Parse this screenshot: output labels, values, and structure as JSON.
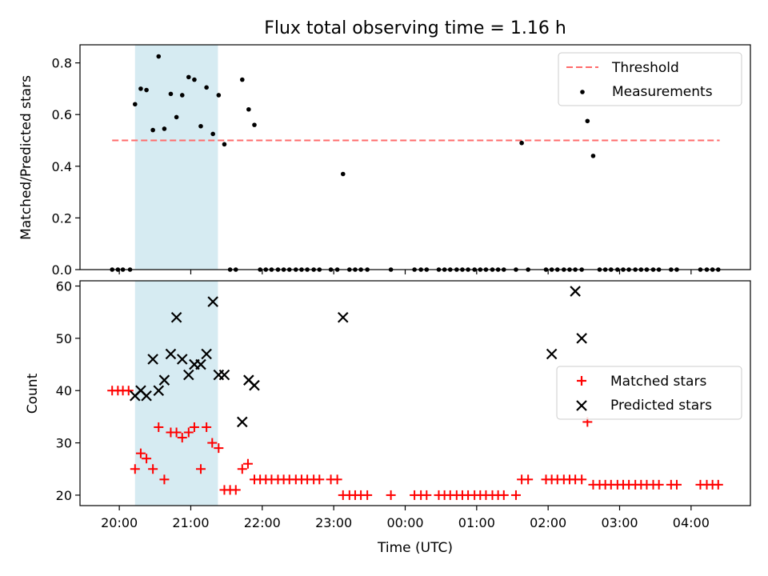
{
  "figure": {
    "title": "Flux total observing time = 1.16 h"
  },
  "colors": {
    "threshold": "#ff6b6b",
    "measurement": "#000000",
    "matched": "#ff0000",
    "predicted": "#000000",
    "highlight": "#add8e6"
  },
  "chart_data": [
    {
      "type": "scatter",
      "ylabel": "Matched/Predicted stars",
      "xlabel": "",
      "ylim": [
        0,
        0.87
      ],
      "yticks": [
        "0.0",
        "0.2",
        "0.4",
        "0.6",
        "0.8"
      ],
      "highlight_interval_hours": [
        20.22,
        21.38
      ],
      "legend_position": "top-right",
      "legend": [
        "Threshold",
        "Measurements"
      ],
      "threshold": {
        "name": "Threshold",
        "y": 0.5,
        "x_range_hours": [
          19.9,
          28.4
        ]
      },
      "series": [
        {
          "name": "Measurements",
          "x_hours": [
            19.9,
            19.98,
            20.05,
            20.15,
            20.22,
            20.3,
            20.38,
            20.47,
            20.55,
            20.63,
            20.72,
            20.8,
            20.88,
            20.97,
            21.05,
            21.14,
            21.22,
            21.31,
            21.39,
            21.47,
            21.55,
            21.63,
            21.72,
            21.81,
            21.89,
            21.97,
            22.05,
            22.13,
            22.22,
            22.3,
            22.38,
            22.47,
            22.55,
            22.63,
            22.72,
            22.8,
            22.96,
            23.05,
            23.13,
            23.22,
            23.3,
            23.38,
            23.47,
            23.8,
            24.13,
            24.22,
            24.3,
            24.47,
            24.55,
            24.63,
            24.72,
            24.8,
            24.88,
            24.97,
            25.05,
            25.13,
            25.22,
            25.3,
            25.38,
            25.55,
            25.63,
            25.72,
            25.97,
            26.05,
            26.13,
            26.22,
            26.3,
            26.38,
            26.47,
            26.55,
            26.63,
            26.72,
            26.8,
            26.88,
            26.97,
            27.05,
            27.13,
            27.22,
            27.3,
            27.38,
            27.47,
            27.55,
            27.72,
            27.8,
            28.13,
            28.22,
            28.3,
            28.38
          ],
          "y": [
            0,
            0,
            0,
            0,
            0.64,
            0.7,
            0.695,
            0.54,
            0.825,
            0.545,
            0.68,
            0.59,
            0.675,
            0.745,
            0.735,
            0.555,
            0.705,
            0.525,
            0.675,
            0.485,
            0,
            0,
            0.735,
            0.62,
            0.56,
            0,
            0,
            0,
            0,
            0,
            0,
            0,
            0,
            0,
            0,
            0,
            0,
            0,
            0.37,
            0,
            0,
            0,
            0,
            0,
            0,
            0,
            0,
            0,
            0,
            0,
            0,
            0,
            0,
            0,
            0,
            0,
            0,
            0,
            0,
            0,
            0.49,
            0,
            0,
            0,
            0,
            0,
            0,
            0,
            0,
            0.575,
            0.44,
            0,
            0,
            0,
            0,
            0,
            0,
            0,
            0,
            0,
            0,
            0,
            0,
            0,
            0,
            0,
            0,
            0
          ]
        }
      ]
    },
    {
      "type": "scatter",
      "ylabel": "Count",
      "xlabel": "Time (UTC)",
      "ylim": [
        18,
        61
      ],
      "yticks": [
        "20",
        "30",
        "40",
        "50",
        "60"
      ],
      "xlim_hours": [
        19.45,
        28.83
      ],
      "xticks": [
        "20:00",
        "21:00",
        "22:00",
        "23:00",
        "00:00",
        "01:00",
        "02:00",
        "03:00",
        "04:00"
      ],
      "xtick_hours": [
        20,
        21,
        22,
        23,
        24,
        25,
        26,
        27,
        28
      ],
      "highlight_interval_hours": [
        20.22,
        21.38
      ],
      "legend_position": "center-right",
      "legend": [
        "Matched stars",
        "Predicted stars"
      ],
      "series": [
        {
          "name": "Matched stars",
          "x_hours": [
            19.9,
            19.98,
            20.05,
            20.13,
            20.22,
            20.3,
            20.38,
            20.47,
            20.55,
            20.63,
            20.72,
            20.8,
            20.88,
            20.97,
            21.05,
            21.14,
            21.22,
            21.3,
            21.39,
            21.47,
            21.55,
            21.63,
            21.72,
            21.8,
            21.89,
            21.97,
            22.05,
            22.13,
            22.22,
            22.3,
            22.38,
            22.47,
            22.55,
            22.63,
            22.72,
            22.8,
            22.96,
            23.05,
            23.13,
            23.22,
            23.3,
            23.38,
            23.47,
            23.8,
            24.13,
            24.22,
            24.3,
            24.47,
            24.55,
            24.63,
            24.72,
            24.8,
            24.88,
            24.97,
            25.05,
            25.13,
            25.22,
            25.3,
            25.38,
            25.55,
            25.63,
            25.72,
            25.97,
            26.05,
            26.13,
            26.22,
            26.3,
            26.38,
            26.47,
            26.55,
            26.63,
            26.72,
            26.8,
            26.88,
            26.97,
            27.05,
            27.13,
            27.22,
            27.3,
            27.38,
            27.47,
            27.55,
            27.72,
            27.8,
            28.13,
            28.22,
            28.3,
            28.38
          ],
          "y": [
            40,
            40,
            40,
            40,
            25,
            28,
            27,
            25,
            33,
            23,
            32,
            32,
            31,
            32,
            33,
            25,
            33,
            30,
            29,
            21,
            21,
            21,
            25,
            26,
            23,
            23,
            23,
            23,
            23,
            23,
            23,
            23,
            23,
            23,
            23,
            23,
            23,
            23,
            20,
            20,
            20,
            20,
            20,
            20,
            20,
            20,
            20,
            20,
            20,
            20,
            20,
            20,
            20,
            20,
            20,
            20,
            20,
            20,
            20,
            20,
            23,
            23,
            23,
            23,
            23,
            23,
            23,
            23,
            23,
            34,
            22,
            22,
            22,
            22,
            22,
            22,
            22,
            22,
            22,
            22,
            22,
            22,
            22,
            22,
            22,
            22,
            22,
            22
          ]
        },
        {
          "name": "Predicted stars",
          "x_hours": [
            20.22,
            20.3,
            20.38,
            20.47,
            20.55,
            20.63,
            20.72,
            20.8,
            20.88,
            20.97,
            21.05,
            21.14,
            21.22,
            21.31,
            21.39,
            21.47,
            21.72,
            21.81,
            21.89,
            23.13,
            26.05,
            26.38,
            26.47
          ],
          "y": [
            39,
            40,
            39,
            46,
            40,
            42,
            47,
            54,
            46,
            43,
            45,
            45,
            47,
            57,
            43,
            43,
            34,
            42,
            41,
            54,
            47,
            59,
            50
          ]
        }
      ]
    }
  ]
}
